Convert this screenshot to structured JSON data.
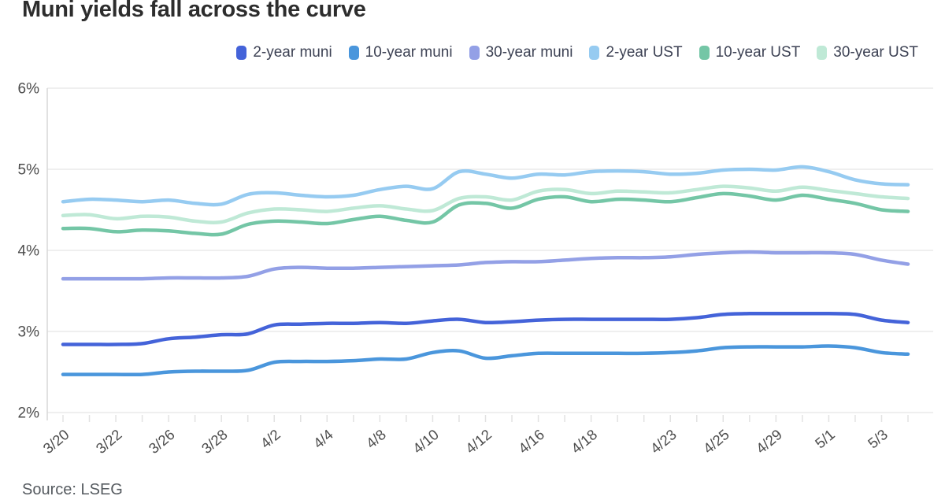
{
  "title": "Muni yields fall across the curve",
  "source_note": "Source: LSEG",
  "y_axis_tick_labels": [
    "6%",
    "5%",
    "4%",
    "3%",
    "2%"
  ],
  "x_axis_tick_labels": [
    "3/20",
    "3/22",
    "3/26",
    "3/28",
    "4/2",
    "4/4",
    "4/8",
    "4/10",
    "4/12",
    "4/16",
    "4/18",
    "4/23",
    "4/25",
    "4/29",
    "5/1",
    "5/3"
  ],
  "colors": {
    "title_text": "#2d2d2d",
    "legend_text": "#3d4254",
    "axis_text": "#4c4c4c",
    "gridline": "#eaeaea",
    "axis_line": "#d7d7d7",
    "minor_tick": "#e2e2e2",
    "background": "#ffffff"
  },
  "chart_data": {
    "type": "line",
    "title": "Muni yields fall across the curve",
    "xlabel": "",
    "ylabel": "",
    "ylim": [
      2,
      6
    ],
    "y_tick_step": 1,
    "y_tick_format": "percent",
    "grid": "horizontal",
    "legend_position": "top-right",
    "x": [
      "3/20",
      "3/21",
      "3/22",
      "3/25",
      "3/26",
      "3/27",
      "3/28",
      "4/1",
      "4/2",
      "4/3",
      "4/4",
      "4/5",
      "4/8",
      "4/9",
      "4/10",
      "4/11",
      "4/12",
      "4/15",
      "4/16",
      "4/17",
      "4/18",
      "4/19",
      "4/22",
      "4/23",
      "4/24",
      "4/25",
      "4/26",
      "4/29",
      "4/30",
      "5/1",
      "5/2",
      "5/3",
      "5/6"
    ],
    "labeled_tick_indices": [
      0,
      2,
      4,
      6,
      8,
      10,
      12,
      14,
      16,
      18,
      20,
      23,
      25,
      27,
      29,
      31
    ],
    "series": [
      {
        "name": "2-year muni",
        "color": "#4463d9",
        "values": [
          2.84,
          2.84,
          2.84,
          2.85,
          2.91,
          2.93,
          2.96,
          2.97,
          3.08,
          3.09,
          3.1,
          3.1,
          3.11,
          3.1,
          3.13,
          3.15,
          3.11,
          3.12,
          3.14,
          3.15,
          3.15,
          3.15,
          3.15,
          3.15,
          3.17,
          3.21,
          3.22,
          3.22,
          3.22,
          3.22,
          3.21,
          3.14,
          3.11
        ]
      },
      {
        "name": "10-year muni",
        "color": "#4a96dc",
        "values": [
          2.47,
          2.47,
          2.47,
          2.47,
          2.5,
          2.51,
          2.51,
          2.52,
          2.62,
          2.63,
          2.63,
          2.64,
          2.66,
          2.66,
          2.74,
          2.76,
          2.67,
          2.7,
          2.73,
          2.73,
          2.73,
          2.73,
          2.73,
          2.74,
          2.76,
          2.8,
          2.81,
          2.81,
          2.81,
          2.82,
          2.8,
          2.74,
          2.72
        ]
      },
      {
        "name": "30-year muni",
        "color": "#93a0e6",
        "values": [
          3.65,
          3.65,
          3.65,
          3.65,
          3.66,
          3.66,
          3.66,
          3.68,
          3.77,
          3.79,
          3.78,
          3.78,
          3.79,
          3.8,
          3.81,
          3.82,
          3.85,
          3.86,
          3.86,
          3.88,
          3.9,
          3.91,
          3.91,
          3.92,
          3.95,
          3.97,
          3.98,
          3.97,
          3.97,
          3.97,
          3.95,
          3.88,
          3.83
        ]
      },
      {
        "name": "2-year UST",
        "color": "#96cbf1",
        "values": [
          4.6,
          4.63,
          4.62,
          4.6,
          4.62,
          4.58,
          4.57,
          4.69,
          4.71,
          4.68,
          4.66,
          4.68,
          4.75,
          4.79,
          4.76,
          4.97,
          4.94,
          4.89,
          4.94,
          4.93,
          4.97,
          4.98,
          4.97,
          4.94,
          4.95,
          4.99,
          5.0,
          4.99,
          5.03,
          4.97,
          4.87,
          4.82,
          4.81
        ]
      },
      {
        "name": "10-year UST",
        "color": "#74c6a6",
        "values": [
          4.27,
          4.27,
          4.23,
          4.25,
          4.24,
          4.21,
          4.2,
          4.32,
          4.36,
          4.35,
          4.33,
          4.38,
          4.42,
          4.37,
          4.35,
          4.56,
          4.58,
          4.52,
          4.63,
          4.66,
          4.6,
          4.63,
          4.62,
          4.6,
          4.65,
          4.7,
          4.67,
          4.62,
          4.68,
          4.63,
          4.58,
          4.5,
          4.48
        ]
      },
      {
        "name": "30-year UST",
        "color": "#bfe9d6",
        "values": [
          4.43,
          4.44,
          4.39,
          4.42,
          4.41,
          4.36,
          4.35,
          4.46,
          4.51,
          4.5,
          4.48,
          4.52,
          4.55,
          4.51,
          4.49,
          4.64,
          4.66,
          4.62,
          4.73,
          4.75,
          4.7,
          4.73,
          4.72,
          4.71,
          4.75,
          4.79,
          4.77,
          4.73,
          4.78,
          4.74,
          4.7,
          4.66,
          4.64
        ]
      }
    ]
  }
}
